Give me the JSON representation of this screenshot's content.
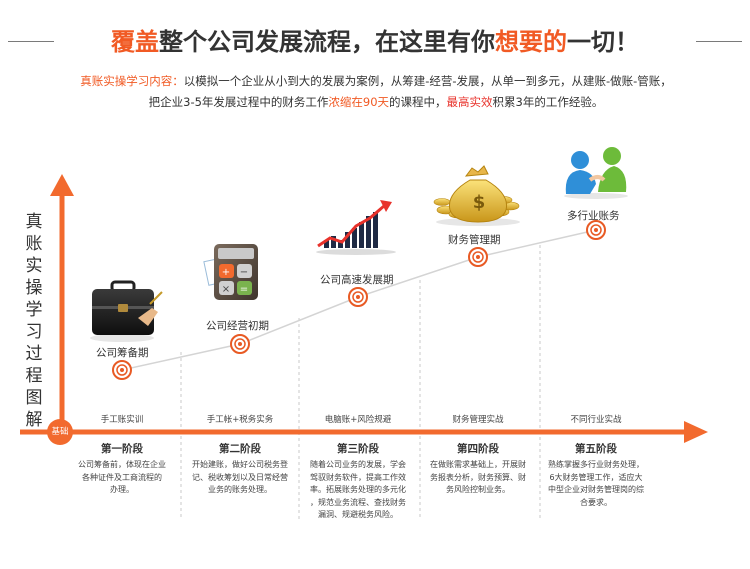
{
  "header": {
    "title_part1": "覆盖",
    "title_part2": "整个公司发展流程，在这里有你",
    "title_part3": "想要的",
    "title_part4": "一切！"
  },
  "intro": {
    "lead": "真账实操学习内容：",
    "line1": "以模拟一个企业从小到大的发展为案例，从筹建-经营-发展，从单一到多元，从建账-做账-管账，",
    "line2_a": "把企业3-5年发展过程中的财务工作",
    "line2_b": "浓缩在90天",
    "line2_c": "的课程中，",
    "line2_d": "最高实效",
    "line2_e": "积累3年的工作经验。"
  },
  "yaxis_label": [
    "真",
    "账",
    "实",
    "操",
    "学",
    "习",
    "过",
    "程",
    "图",
    "解"
  ],
  "origin_badge": "基础",
  "stages": [
    {
      "name": "公司筹备期",
      "icon": "briefcase-icon"
    },
    {
      "name": "公司经营初期",
      "icon": "calculator-icon"
    },
    {
      "name": "公司高速发展期",
      "icon": "growth-chart-icon"
    },
    {
      "name": "财务管理期",
      "icon": "money-bag-icon"
    },
    {
      "name": "多行业账务",
      "icon": "people-icon"
    }
  ],
  "tracks": [
    "手工账实训",
    "手工帐+税务实务",
    "电脑账+风险规避",
    "财务管理实战",
    "不同行业实战"
  ],
  "phases": [
    {
      "title": "第一阶段",
      "desc": [
        "公司筹备前，体现在企业",
        "各种证件及工商流程的",
        "办理。"
      ]
    },
    {
      "title": "第二阶段",
      "desc": [
        "开始建账，做好公司税务登",
        "记、税收筹划以及日常经营",
        "业务的账务处理。"
      ]
    },
    {
      "title": "第三阶段",
      "desc": [
        "随着公司业务的发展，学会",
        "驾驭财务软件，提高工作效",
        "率。拓展账务处理的多元化",
        "，规范业务流程、查找财务",
        "漏洞、规避税务风险。"
      ]
    },
    {
      "title": "第四阶段",
      "desc": [
        "在做账需求基础上，开展财",
        "务报表分析，财务预算、财",
        "务风险控制业务。"
      ]
    },
    {
      "title": "第五阶段",
      "desc": [
        "熟练掌握多行业财务处理，",
        "6大财务管理工作，适应大",
        "中型企业对财务管理岗的综",
        "合要求。"
      ]
    }
  ],
  "colors": {
    "accent": "#f15a24",
    "axis": "#f26a2e"
  }
}
